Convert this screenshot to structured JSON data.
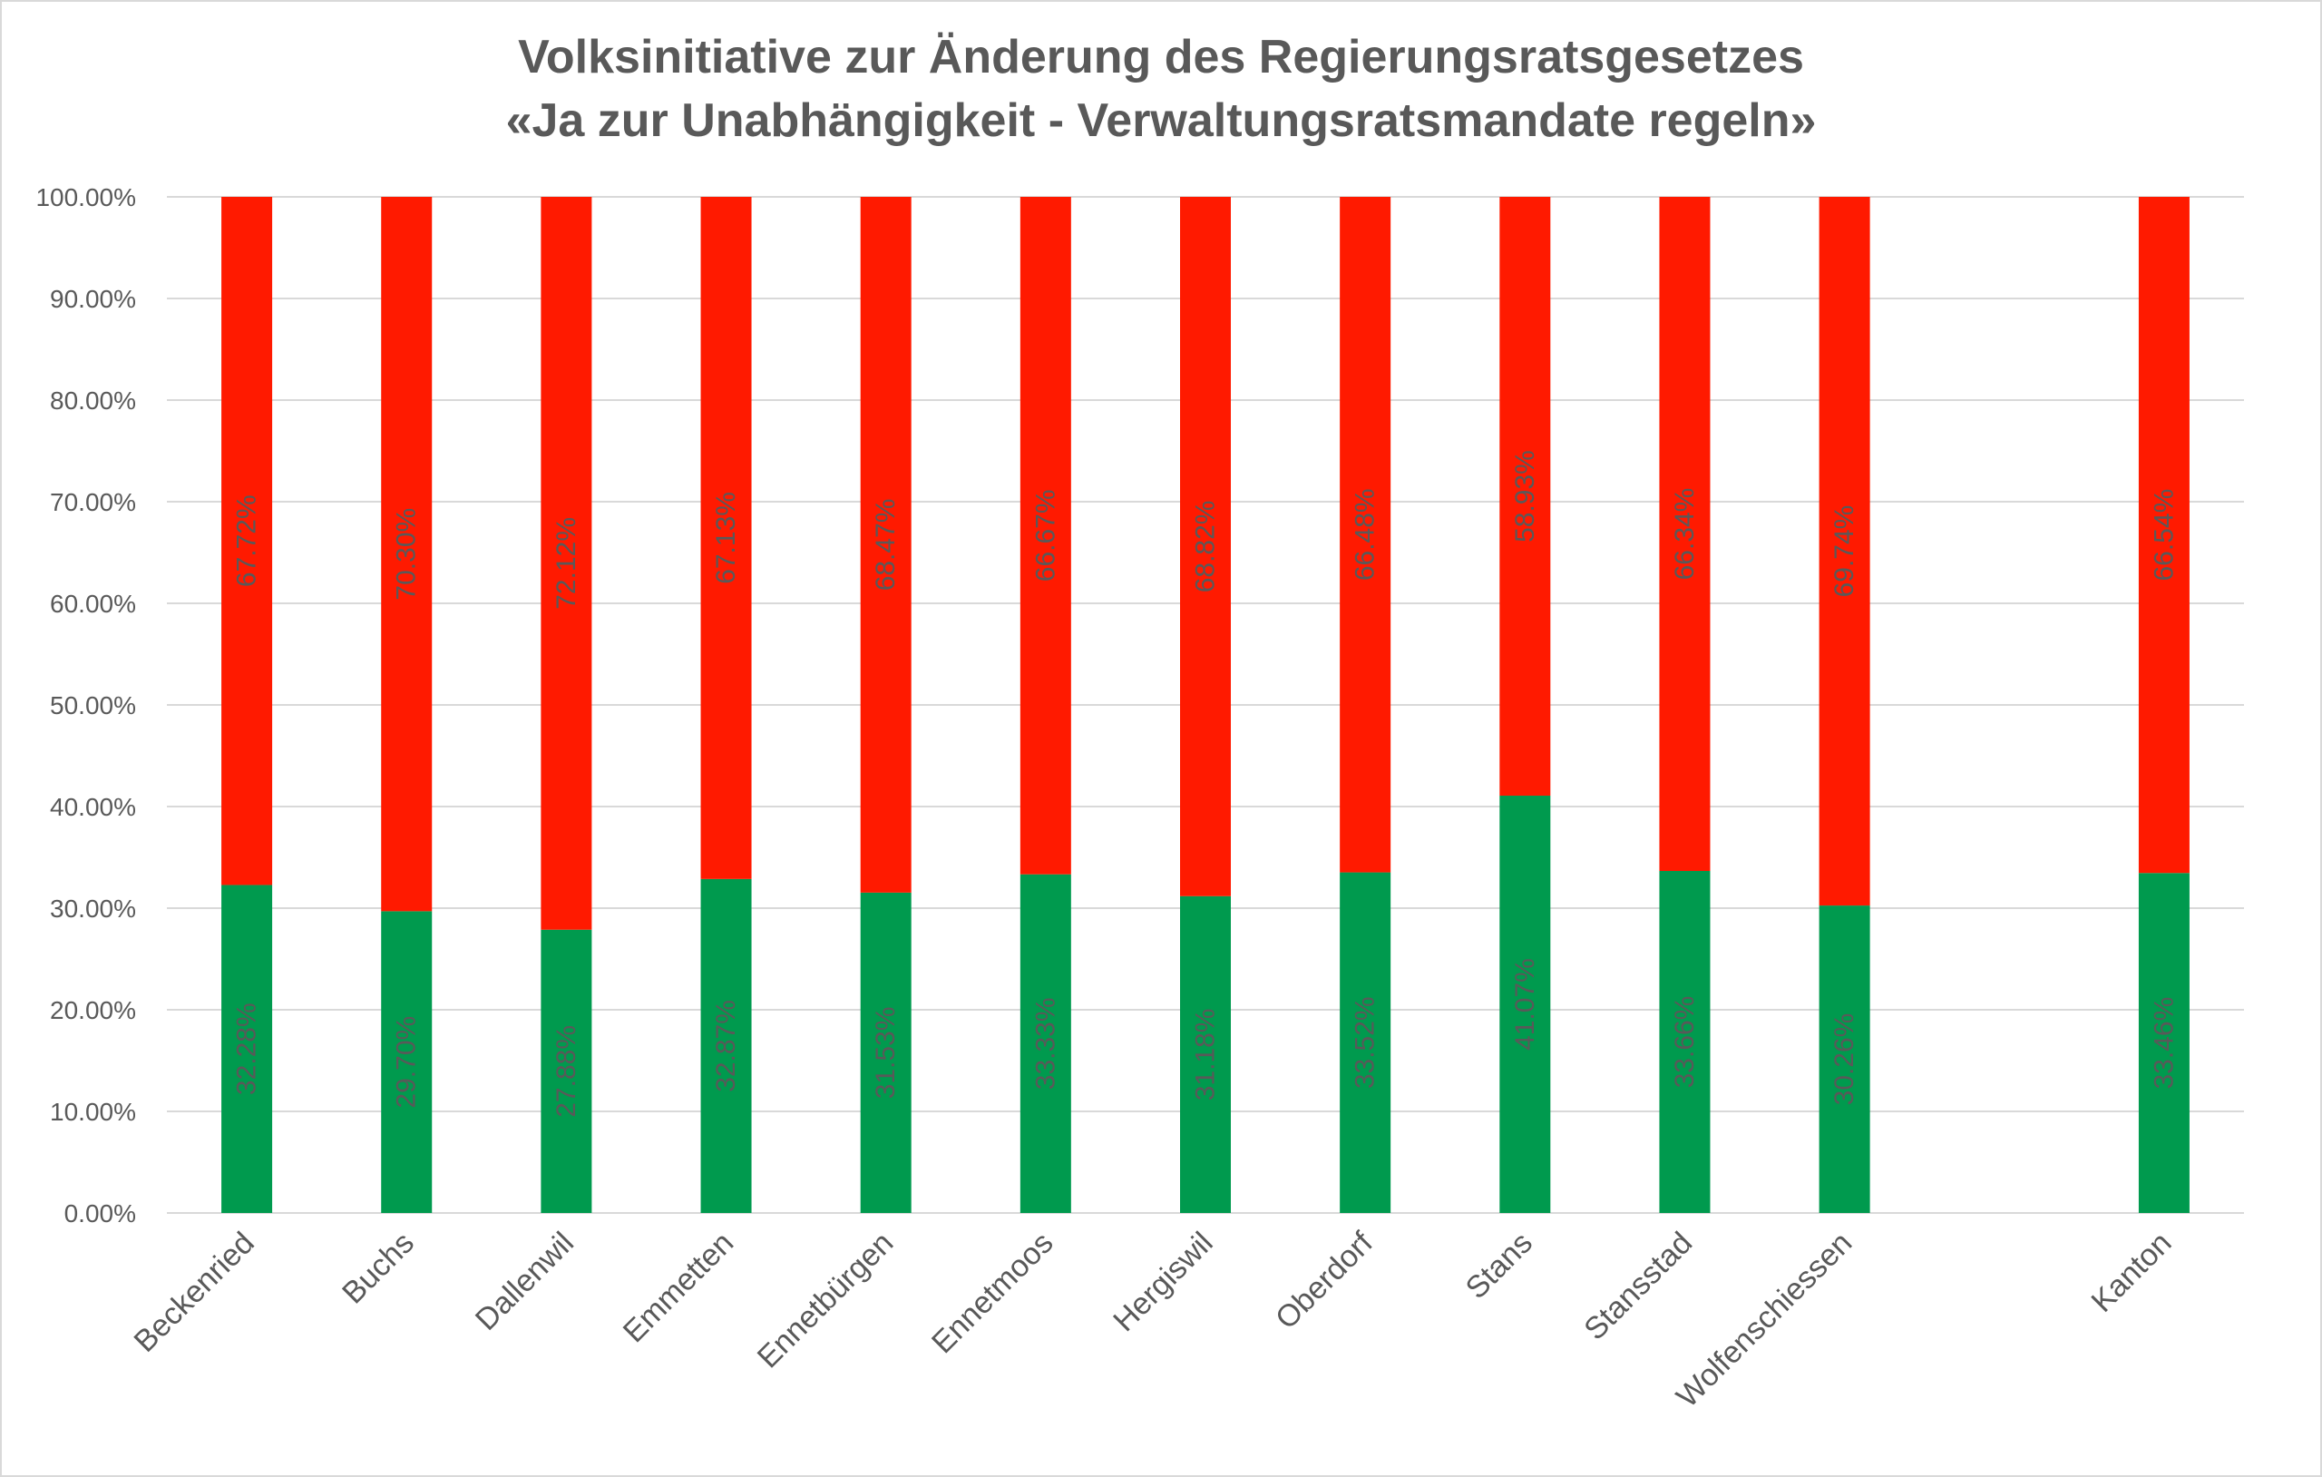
{
  "chart_data": {
    "type": "bar",
    "stacked": true,
    "title": "Volksinitiative zur Änderung des Regierungsratsgesetzes",
    "subtitle": "«Ja zur Unabhängigkeit - Verwaltungsratsmandate regeln»",
    "xlabel": "",
    "ylabel": "",
    "ylim": [
      0,
      100
    ],
    "yticks": [
      "0.00%",
      "10.00%",
      "20.00%",
      "30.00%",
      "40.00%",
      "50.00%",
      "60.00%",
      "70.00%",
      "80.00%",
      "90.00%",
      "100.00%"
    ],
    "grid": true,
    "legend": "none",
    "categories": [
      "Beckenried",
      "Buchs",
      "Dallenwil",
      "Emmetten",
      "Ennetbürgen",
      "Ennetmoos",
      "Hergiswil",
      "Oberdorf",
      "Stans",
      "Stansstad",
      "Wolfenschiessen",
      "",
      "Kanton"
    ],
    "series": [
      {
        "color": "#009A4E",
        "values": [
          32.28,
          29.7,
          27.88,
          32.87,
          31.53,
          33.33,
          31.18,
          33.52,
          41.07,
          33.66,
          30.26,
          null,
          33.46
        ],
        "labels": [
          "32.28%",
          "29.70%",
          "27.88%",
          "32.87%",
          "31.53%",
          "33.33%",
          "31.18%",
          "33.52%",
          "41.07%",
          "33.66%",
          "30.26%",
          "",
          "33.46%"
        ]
      },
      {
        "color": "#FF1A00",
        "values": [
          67.72,
          70.3,
          72.12,
          67.13,
          68.47,
          66.67,
          68.82,
          66.48,
          58.93,
          66.34,
          69.74,
          null,
          66.54
        ],
        "labels": [
          "67.72%",
          "70.30%",
          "72.12%",
          "67.13%",
          "68.47%",
          "66.67%",
          "68.82%",
          "66.48%",
          "58.93%",
          "66.34%",
          "69.74%",
          "",
          "66.54%"
        ]
      }
    ],
    "text_color": "#595959",
    "grid_color": "#D9D9D9"
  }
}
